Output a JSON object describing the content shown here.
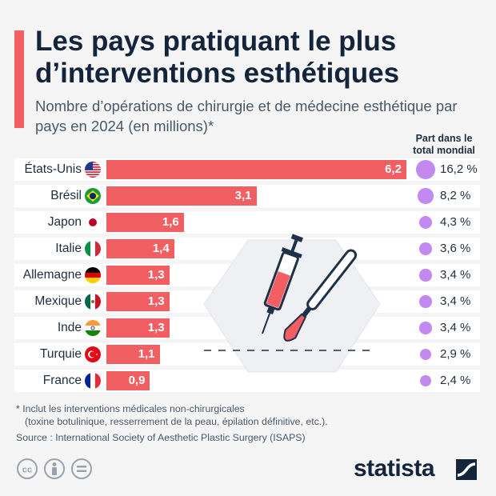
{
  "title": "Les pays pratiquant le plus d’interventions esthétiques",
  "subtitle": "Nombre d’opérations de chirurgie et de médecine esthétique par pays en 2024 (en millions)*",
  "share_header": {
    "line1": "Part dans le",
    "line2": "total mondial"
  },
  "footnote_line1": "* Inclut les interventions médicales non-chirurgicales",
  "footnote_line2": "(toxine botulinique, resserrement de la peau, épilation définitive, etc.).",
  "source": "Source : International Society of Aesthetic Plastic Surgery (ISAPS)",
  "brand": "statista",
  "icons": [
    "flag-usa-icon",
    "flag-brazil-icon",
    "flag-japan-icon",
    "flag-italy-icon",
    "flag-germany-icon",
    "flag-mexico-icon",
    "flag-india-icon",
    "flag-turkey-icon",
    "flag-france-icon",
    "syringe-icon",
    "scalpel-icon",
    "cc-icon",
    "person-icon",
    "equals-icon"
  ],
  "colors": {
    "bar": "#f25f62",
    "dot": "#c28af0",
    "title": "#14243a",
    "accent": "#f25f62"
  },
  "chart_data": {
    "type": "bar",
    "orientation": "horizontal",
    "title": "Les pays pratiquant le plus d’interventions esthétiques",
    "categories": [
      "États-Unis",
      "Brésil",
      "Japon",
      "Italie",
      "Allemagne",
      "Mexique",
      "Inde",
      "Turquie",
      "France"
    ],
    "values": [
      6.2,
      3.1,
      1.6,
      1.4,
      1.3,
      1.3,
      1.3,
      1.1,
      0.9
    ],
    "value_labels": [
      "6,2",
      "3,1",
      "1,6",
      "1,4",
      "1,3",
      "1,3",
      "1,3",
      "1,1",
      "0,9"
    ],
    "unit": "millions",
    "share_values": [
      16.2,
      8.2,
      4.3,
      3.6,
      3.4,
      3.4,
      3.4,
      2.9,
      2.4
    ],
    "share_labels": [
      "16,2 %",
      "8,2 %",
      "4,3 %",
      "3,6 %",
      "3,4 %",
      "3,4 %",
      "3,4 %",
      "2,9 %",
      "2,4 %"
    ],
    "xlim": [
      0,
      6.2
    ],
    "flags": [
      "us",
      "br",
      "jp",
      "it",
      "de",
      "mx",
      "in",
      "tr",
      "fr"
    ]
  }
}
